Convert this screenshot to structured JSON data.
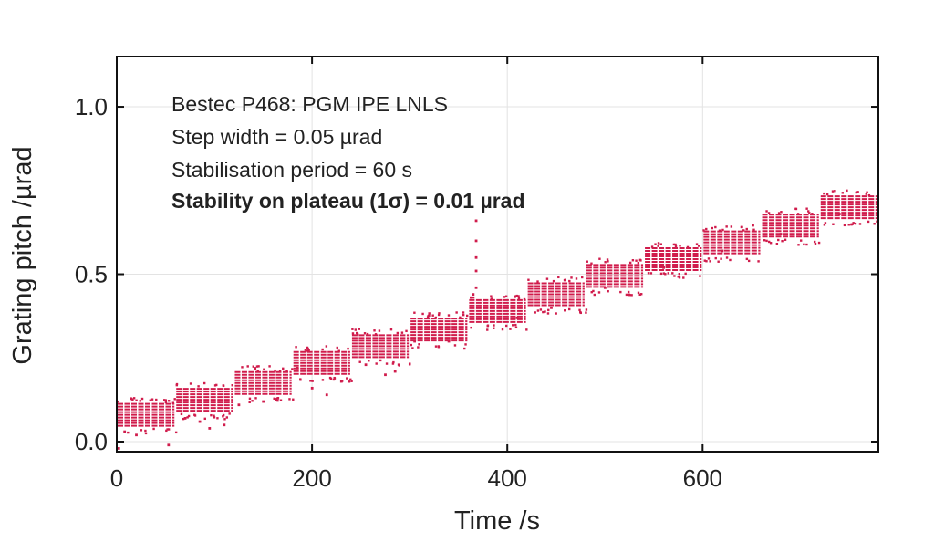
{
  "chart_data": {
    "type": "scatter",
    "title": "",
    "xlabel": "Time /s",
    "ylabel": "Grating pitch /µrad",
    "xlim": [
      0,
      780
    ],
    "ylim": [
      -0.03,
      1.15
    ],
    "xticks": [
      0,
      200,
      400,
      600
    ],
    "xtick_labels": [
      "0",
      "200",
      "400",
      "600"
    ],
    "yticks": [
      0.0,
      0.5,
      1.0
    ],
    "ytick_labels": [
      "0.0",
      "0.5",
      "1.0"
    ],
    "grid": true,
    "marker_color": "#d01c4c",
    "annotations": [
      "Bestec P468: PGM IPE LNLS",
      "Step width = 0.05 µrad",
      "Stabilisation period = 60 s",
      "Stability on plateau (1σ) = 0.01 µrad"
    ],
    "series": [
      {
        "name": "Grating pitch",
        "plateaus": [
          {
            "t_start": 0,
            "t_end": 60,
            "level": 0.08
          },
          {
            "t_start": 60,
            "t_end": 120,
            "level": 0.125
          },
          {
            "t_start": 120,
            "t_end": 180,
            "level": 0.175
          },
          {
            "t_start": 180,
            "t_end": 240,
            "level": 0.235
          },
          {
            "t_start": 240,
            "t_end": 300,
            "level": 0.285
          },
          {
            "t_start": 300,
            "t_end": 360,
            "level": 0.335
          },
          {
            "t_start": 360,
            "t_end": 420,
            "level": 0.39
          },
          {
            "t_start": 420,
            "t_end": 480,
            "level": 0.44
          },
          {
            "t_start": 480,
            "t_end": 540,
            "level": 0.495
          },
          {
            "t_start": 540,
            "t_end": 600,
            "level": 0.545
          },
          {
            "t_start": 600,
            "t_end": 660,
            "level": 0.595
          },
          {
            "t_start": 660,
            "t_end": 720,
            "level": 0.645
          },
          {
            "t_start": 720,
            "t_end": 780,
            "level": 0.7
          }
        ],
        "outliers": [
          {
            "x": 2,
            "y": -0.02
          },
          {
            "x": 8,
            "y": 0.03
          },
          {
            "x": 20,
            "y": 0.02
          },
          {
            "x": 53,
            "y": -0.01
          },
          {
            "x": 70,
            "y": 0.07
          },
          {
            "x": 85,
            "y": 0.06
          },
          {
            "x": 95,
            "y": 0.04
          },
          {
            "x": 110,
            "y": 0.05
          },
          {
            "x": 125,
            "y": 0.11
          },
          {
            "x": 150,
            "y": 0.12
          },
          {
            "x": 165,
            "y": 0.13
          },
          {
            "x": 185,
            "y": 0.22
          },
          {
            "x": 200,
            "y": 0.16
          },
          {
            "x": 215,
            "y": 0.14
          },
          {
            "x": 230,
            "y": 0.18
          },
          {
            "x": 255,
            "y": 0.23
          },
          {
            "x": 275,
            "y": 0.2
          },
          {
            "x": 285,
            "y": 0.21
          },
          {
            "x": 305,
            "y": 0.3
          },
          {
            "x": 340,
            "y": 0.3
          },
          {
            "x": 368,
            "y": 0.66
          },
          {
            "x": 368,
            "y": 0.6
          },
          {
            "x": 368,
            "y": 0.55
          },
          {
            "x": 368,
            "y": 0.51
          },
          {
            "x": 368,
            "y": 0.46
          },
          {
            "x": 365,
            "y": 0.44
          },
          {
            "x": 410,
            "y": 0.37
          },
          {
            "x": 445,
            "y": 0.4
          },
          {
            "x": 500,
            "y": 0.46
          },
          {
            "x": 560,
            "y": 0.52
          },
          {
            "x": 620,
            "y": 0.57
          },
          {
            "x": 680,
            "y": 0.62
          },
          {
            "x": 740,
            "y": 0.68
          }
        ]
      }
    ]
  }
}
